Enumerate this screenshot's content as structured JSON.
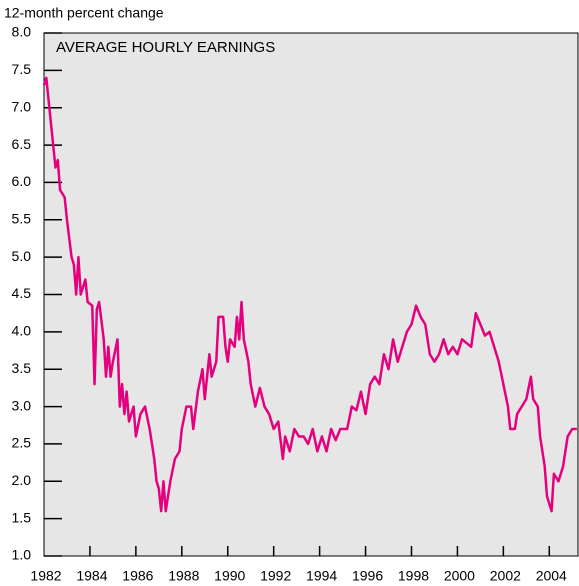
{
  "chart_data": {
    "type": "line",
    "title": "AVERAGE HOURLY EARNINGS",
    "y_axis_label": "12-month percent change",
    "xlim": [
      1982,
      2005.25
    ],
    "ylim": [
      1.0,
      8.0
    ],
    "xticks": [
      1982,
      1984,
      1986,
      1988,
      1990,
      1992,
      1994,
      1996,
      1998,
      2000,
      2002,
      2004
    ],
    "yticks": [
      {
        "value": 1.0,
        "label": "1.0"
      },
      {
        "value": 1.5,
        "label": "1.5"
      },
      {
        "value": 2.0,
        "label": "2.0"
      },
      {
        "value": 2.5,
        "label": "2.5"
      },
      {
        "value": 3.0,
        "label": "3.0"
      },
      {
        "value": 3.5,
        "label": "3.5"
      },
      {
        "value": 4.0,
        "label": "4.0"
      },
      {
        "value": 4.5,
        "label": "4.5"
      },
      {
        "value": 5.0,
        "label": "5.0"
      },
      {
        "value": 5.5,
        "label": "5.5"
      },
      {
        "value": 6.0,
        "label": "6.0"
      },
      {
        "value": 6.5,
        "label": "6.5"
      },
      {
        "value": 7.0,
        "label": "7.0"
      },
      {
        "value": 7.5,
        "label": "7.5"
      },
      {
        "value": 8.0,
        "label": "8.0"
      }
    ],
    "x": [
      1982.0,
      1982.1,
      1982.3,
      1982.5,
      1982.6,
      1982.7,
      1982.9,
      1983.0,
      1983.2,
      1983.3,
      1983.4,
      1983.5,
      1983.6,
      1983.8,
      1983.9,
      1984.1,
      1984.2,
      1984.3,
      1984.4,
      1984.6,
      1984.7,
      1984.8,
      1984.9,
      1985.0,
      1985.2,
      1985.3,
      1985.4,
      1985.5,
      1985.6,
      1985.7,
      1985.9,
      1986.0,
      1986.2,
      1986.4,
      1986.6,
      1986.8,
      1986.9,
      1987.0,
      1987.1,
      1987.2,
      1987.3,
      1987.5,
      1987.7,
      1987.9,
      1988.0,
      1988.2,
      1988.4,
      1988.5,
      1988.7,
      1988.9,
      1989.0,
      1989.2,
      1989.3,
      1989.5,
      1989.6,
      1989.8,
      1989.9,
      1990.0,
      1990.1,
      1990.3,
      1990.4,
      1990.5,
      1990.6,
      1990.7,
      1990.9,
      1991.0,
      1991.2,
      1991.4,
      1991.6,
      1991.8,
      1992.0,
      1992.2,
      1992.4,
      1992.5,
      1992.7,
      1992.9,
      1993.1,
      1993.3,
      1993.5,
      1993.7,
      1993.9,
      1994.1,
      1994.3,
      1994.5,
      1994.7,
      1994.9,
      1995.2,
      1995.4,
      1995.6,
      1995.8,
      1996.0,
      1996.2,
      1996.4,
      1996.6,
      1996.8,
      1997.0,
      1997.2,
      1997.4,
      1997.6,
      1997.8,
      1998.0,
      1998.2,
      1998.4,
      1998.6,
      1998.8,
      1999.0,
      1999.2,
      1999.4,
      1999.6,
      1999.8,
      2000.0,
      2000.2,
      2000.4,
      2000.6,
      2000.8,
      2001.0,
      2001.2,
      2001.4,
      2001.6,
      2001.8,
      2002.0,
      2002.2,
      2002.3,
      2002.5,
      2002.6,
      2002.8,
      2003.0,
      2003.2,
      2003.3,
      2003.5,
      2003.6,
      2003.8,
      2003.9,
      2004.0,
      2004.1,
      2004.2,
      2004.4,
      2004.6,
      2004.8,
      2005.0,
      2005.2
    ],
    "series": [
      {
        "name": "Average hourly earnings",
        "color": "#e5007e",
        "values": [
          7.3,
          7.4,
          6.8,
          6.2,
          6.3,
          5.9,
          5.8,
          5.5,
          5.0,
          4.9,
          4.5,
          5.0,
          4.5,
          4.7,
          4.4,
          4.35,
          3.3,
          4.3,
          4.4,
          3.9,
          3.4,
          3.8,
          3.4,
          3.6,
          3.9,
          3.0,
          3.3,
          2.9,
          3.2,
          2.8,
          3.0,
          2.6,
          2.9,
          3.0,
          2.7,
          2.3,
          2.0,
          1.9,
          1.6,
          2.0,
          1.6,
          2.0,
          2.3,
          2.4,
          2.7,
          3.0,
          3.0,
          2.7,
          3.2,
          3.5,
          3.1,
          3.7,
          3.4,
          3.6,
          4.2,
          4.2,
          3.8,
          3.6,
          3.9,
          3.8,
          4.2,
          3.9,
          4.4,
          3.9,
          3.6,
          3.3,
          3.0,
          3.25,
          3.0,
          2.9,
          2.7,
          2.8,
          2.3,
          2.6,
          2.4,
          2.7,
          2.6,
          2.6,
          2.5,
          2.7,
          2.4,
          2.6,
          2.4,
          2.7,
          2.55,
          2.7,
          2.7,
          3.0,
          2.95,
          3.2,
          2.9,
          3.3,
          3.4,
          3.3,
          3.7,
          3.5,
          3.9,
          3.6,
          3.8,
          4.0,
          4.1,
          4.35,
          4.2,
          4.1,
          3.7,
          3.6,
          3.7,
          3.9,
          3.7,
          3.8,
          3.7,
          3.9,
          3.85,
          3.8,
          4.25,
          4.1,
          3.95,
          4.0,
          3.8,
          3.6,
          3.3,
          3.0,
          2.7,
          2.7,
          2.9,
          3.0,
          3.1,
          3.4,
          3.1,
          3.0,
          2.6,
          2.2,
          1.8,
          1.7,
          1.6,
          2.1,
          2.0,
          2.2,
          2.6,
          2.7,
          2.7
        ]
      }
    ]
  }
}
